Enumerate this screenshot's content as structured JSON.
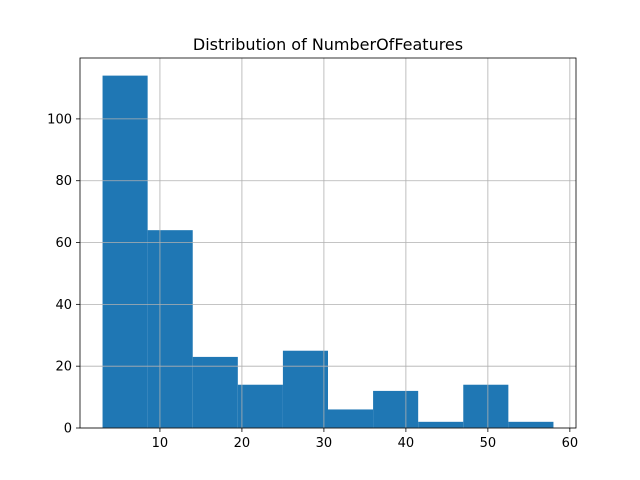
{
  "chart_data": {
    "type": "bar",
    "subtype": "histogram",
    "title": "Distribution of NumberOfFeatures",
    "xlabel": "",
    "ylabel": "",
    "bins": [
      {
        "start": 3.0,
        "end": 8.5,
        "count": 114
      },
      {
        "start": 8.5,
        "end": 14.0,
        "count": 64
      },
      {
        "start": 14.0,
        "end": 19.5,
        "count": 23
      },
      {
        "start": 19.5,
        "end": 25.0,
        "count": 14
      },
      {
        "start": 25.0,
        "end": 30.5,
        "count": 25
      },
      {
        "start": 30.5,
        "end": 36.0,
        "count": 6
      },
      {
        "start": 36.0,
        "end": 41.5,
        "count": 12
      },
      {
        "start": 41.5,
        "end": 47.0,
        "count": 2
      },
      {
        "start": 47.0,
        "end": 52.5,
        "count": 14
      },
      {
        "start": 52.5,
        "end": 58.0,
        "count": 2
      }
    ],
    "xlim": [
      0.25,
      60.75
    ],
    "ylim": [
      0,
      119.7
    ],
    "xticks": [
      10,
      20,
      30,
      40,
      50,
      60
    ],
    "yticks": [
      0,
      20,
      40,
      60,
      80,
      100
    ],
    "grid": true,
    "legend": "none",
    "bar_color": "#1f77b4",
    "grid_color": "#b0b0b0",
    "axis_color": "#000000"
  }
}
